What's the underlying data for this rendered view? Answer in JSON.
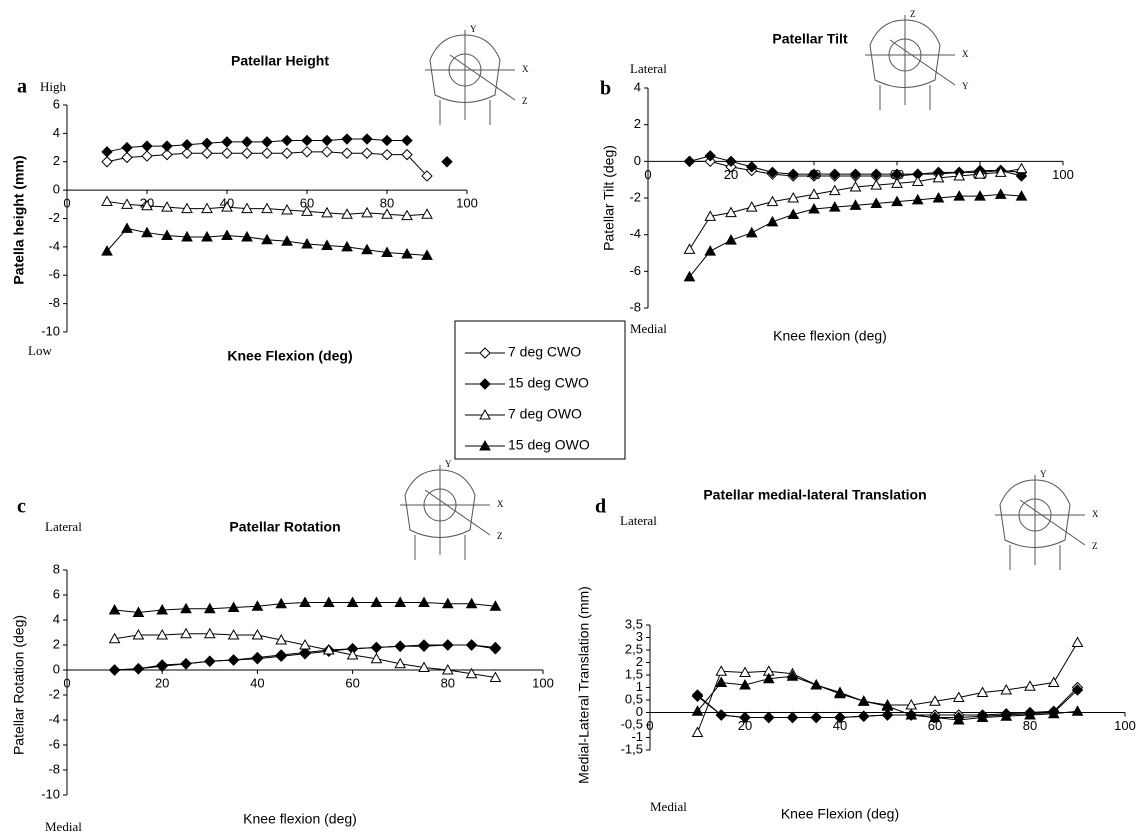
{
  "series_styles": [
    {
      "name": "7 deg CWO",
      "marker": "diamond",
      "fill": "#ffffff"
    },
    {
      "name": "15 deg CWO",
      "marker": "diamond",
      "fill": "#000000"
    },
    {
      "name": "7 deg OWO",
      "marker": "triangle",
      "fill": "#ffffff"
    },
    {
      "name": "15 deg OWO",
      "marker": "triangle",
      "fill": "#000000"
    }
  ],
  "chart_data": [
    {
      "type": "line",
      "panel_label": "a",
      "title": "Patellar Height",
      "top_note": "High",
      "bottom_note": "Low",
      "xlabel": "Knee Flexion (deg)",
      "ylabel": "Patella height (mm)",
      "icon_labels": [
        "Y",
        "X",
        "Z"
      ],
      "x": [
        10,
        15,
        20,
        25,
        30,
        35,
        40,
        45,
        50,
        55,
        60,
        65,
        70,
        75,
        80,
        85,
        90,
        95
      ],
      "series": [
        {
          "values": [
            2.0,
            2.3,
            2.4,
            2.5,
            2.6,
            2.6,
            2.6,
            2.6,
            2.6,
            2.6,
            2.7,
            2.7,
            2.6,
            2.6,
            2.5,
            2.5,
            1.0,
            null
          ]
        },
        {
          "values": [
            2.7,
            3.0,
            3.1,
            3.1,
            3.2,
            3.3,
            3.4,
            3.4,
            3.4,
            3.5,
            3.5,
            3.5,
            3.6,
            3.6,
            3.5,
            3.5,
            null,
            2.0
          ]
        },
        {
          "values": [
            -0.8,
            -1.0,
            -1.1,
            -1.2,
            -1.3,
            -1.3,
            -1.2,
            -1.3,
            -1.3,
            -1.4,
            -1.5,
            -1.6,
            -1.7,
            -1.6,
            -1.7,
            -1.8,
            -1.7,
            null
          ]
        },
        {
          "values": [
            -4.3,
            -2.7,
            -3.0,
            -3.2,
            -3.3,
            -3.3,
            -3.2,
            -3.3,
            -3.5,
            -3.6,
            -3.8,
            -3.9,
            -4.0,
            -4.2,
            -4.4,
            -4.5,
            -4.6,
            null
          ]
        }
      ],
      "xlim": [
        0,
        100
      ],
      "xticks": [
        0,
        20,
        40,
        60,
        80,
        100
      ],
      "ylim": [
        -10,
        6
      ],
      "yticks": [
        -10,
        -8,
        -6,
        -4,
        -2,
        0,
        2,
        4,
        6
      ]
    },
    {
      "type": "line",
      "panel_label": "b",
      "title": "Patellar Tilt",
      "top_note": "Lateral",
      "bottom_note": "Medial",
      "xlabel": "Knee flexion (deg)",
      "ylabel": "Patellar Tilt (deg)",
      "icon_labels": [
        "Z",
        "X",
        "Y"
      ],
      "x": [
        10,
        15,
        20,
        25,
        30,
        35,
        40,
        45,
        50,
        55,
        60,
        65,
        70,
        75,
        80,
        85,
        90
      ],
      "series": [
        {
          "values": [
            0,
            0,
            -0.3,
            -0.5,
            -0.7,
            -0.8,
            -0.8,
            -0.8,
            -0.8,
            -0.8,
            -0.8,
            -0.7,
            -0.7,
            -0.6,
            -0.6,
            -0.5,
            -0.6
          ]
        },
        {
          "values": [
            0,
            0.3,
            0,
            -0.3,
            -0.6,
            -0.7,
            -0.7,
            -0.7,
            -0.7,
            -0.7,
            -0.7,
            -0.7,
            -0.6,
            -0.6,
            -0.5,
            -0.5,
            -0.8
          ]
        },
        {
          "values": [
            -4.8,
            -3.0,
            -2.8,
            -2.5,
            -2.2,
            -2.0,
            -1.8,
            -1.6,
            -1.4,
            -1.3,
            -1.2,
            -1.1,
            -0.9,
            -0.8,
            -0.7,
            -0.6,
            -0.4
          ]
        },
        {
          "values": [
            -6.3,
            -4.9,
            -4.3,
            -3.9,
            -3.3,
            -2.9,
            -2.6,
            -2.5,
            -2.4,
            -2.3,
            -2.2,
            -2.1,
            -2.0,
            -1.9,
            -1.9,
            -1.8,
            -1.9
          ]
        }
      ],
      "xlim": [
        0,
        100
      ],
      "xticks": [
        0,
        20,
        40,
        60,
        80,
        100
      ],
      "ylim": [
        -8,
        4
      ],
      "yticks": [
        -8,
        -6,
        -4,
        -2,
        0,
        2,
        4
      ]
    },
    {
      "type": "line",
      "panel_label": "c",
      "title": "Patellar Rotation",
      "top_note": "Lateral",
      "bottom_note": "Medial",
      "xlabel": "Knee flexion (deg)",
      "ylabel": "Patellar Rotation (deg)",
      "icon_labels": [
        "Y",
        "X",
        "Z"
      ],
      "x": [
        10,
        15,
        20,
        25,
        30,
        35,
        40,
        45,
        50,
        55,
        60,
        65,
        70,
        75,
        80,
        85,
        90
      ],
      "series": [
        {
          "values": [
            0,
            0.1,
            0.3,
            0.5,
            0.7,
            0.8,
            0.9,
            1.1,
            1.3,
            1.5,
            1.7,
            1.8,
            1.9,
            1.9,
            2.0,
            2.0,
            1.8
          ]
        },
        {
          "values": [
            0,
            0.1,
            0.4,
            0.5,
            0.7,
            0.8,
            1.0,
            1.2,
            1.4,
            1.6,
            1.7,
            1.8,
            1.9,
            2.0,
            2.0,
            2.0,
            1.7
          ]
        },
        {
          "values": [
            2.5,
            2.8,
            2.8,
            2.9,
            2.9,
            2.8,
            2.8,
            2.4,
            2.0,
            1.6,
            1.2,
            0.9,
            0.5,
            0.2,
            0,
            -0.3,
            -0.6
          ]
        },
        {
          "values": [
            4.8,
            4.6,
            4.8,
            4.9,
            4.9,
            5.0,
            5.1,
            5.3,
            5.4,
            5.4,
            5.4,
            5.4,
            5.4,
            5.4,
            5.3,
            5.3,
            5.1
          ]
        }
      ],
      "xlim": [
        0,
        100
      ],
      "xticks": [
        0,
        20,
        40,
        60,
        80,
        100
      ],
      "ylim": [
        -10,
        8
      ],
      "yticks": [
        -10,
        -8,
        -6,
        -4,
        -2,
        0,
        2,
        4,
        6,
        8
      ]
    },
    {
      "type": "line",
      "panel_label": "d",
      "title": "Patellar medial-lateral Translation",
      "top_note": "Lateral",
      "bottom_note": "Medial",
      "xlabel": "Knee Flexion (deg)",
      "ylabel": "Medial-Lateral Translation (mm)",
      "icon_labels": [
        "Y",
        "X",
        "Z"
      ],
      "x": [
        10,
        15,
        20,
        25,
        30,
        35,
        40,
        45,
        50,
        55,
        60,
        65,
        70,
        75,
        80,
        85,
        90
      ],
      "series": [
        {
          "values": [
            0.7,
            -0.1,
            -0.2,
            -0.2,
            -0.2,
            -0.2,
            -0.2,
            -0.15,
            -0.1,
            -0.1,
            -0.1,
            -0.1,
            -0.1,
            -0.05,
            0,
            0.05,
            1.0
          ]
        },
        {
          "values": [
            0.65,
            -0.1,
            -0.2,
            -0.2,
            -0.2,
            -0.2,
            -0.2,
            -0.15,
            -0.1,
            -0.1,
            -0.2,
            -0.2,
            -0.15,
            -0.1,
            -0.05,
            0,
            0.9
          ]
        },
        {
          "values": [
            -0.8,
            1.65,
            1.6,
            1.65,
            1.55,
            1.1,
            0.8,
            0.45,
            0.3,
            0.3,
            0.45,
            0.6,
            0.8,
            0.9,
            1.05,
            1.2,
            2.8
          ]
        },
        {
          "values": [
            0.05,
            1.2,
            1.1,
            1.35,
            1.45,
            1.1,
            0.75,
            0.45,
            0.25,
            -0.1,
            -0.2,
            -0.3,
            -0.2,
            -0.15,
            -0.1,
            -0.05,
            0.05
          ]
        }
      ],
      "xlim": [
        0,
        100
      ],
      "xticks": [
        0,
        20,
        40,
        60,
        80,
        100
      ],
      "ylim": [
        -1.5,
        3.5
      ],
      "yticks": [
        {
          "value": -1.5,
          "label": "-1,5"
        },
        -1,
        {
          "value": -0.5,
          "label": "-0,5"
        },
        0,
        {
          "value": 0.5,
          "label": "0,5"
        },
        1,
        {
          "value": 1.5,
          "label": "1,5"
        },
        2,
        {
          "value": 2.5,
          "label": "2,5"
        },
        3,
        {
          "value": 3.5,
          "label": "3,5"
        }
      ]
    }
  ]
}
